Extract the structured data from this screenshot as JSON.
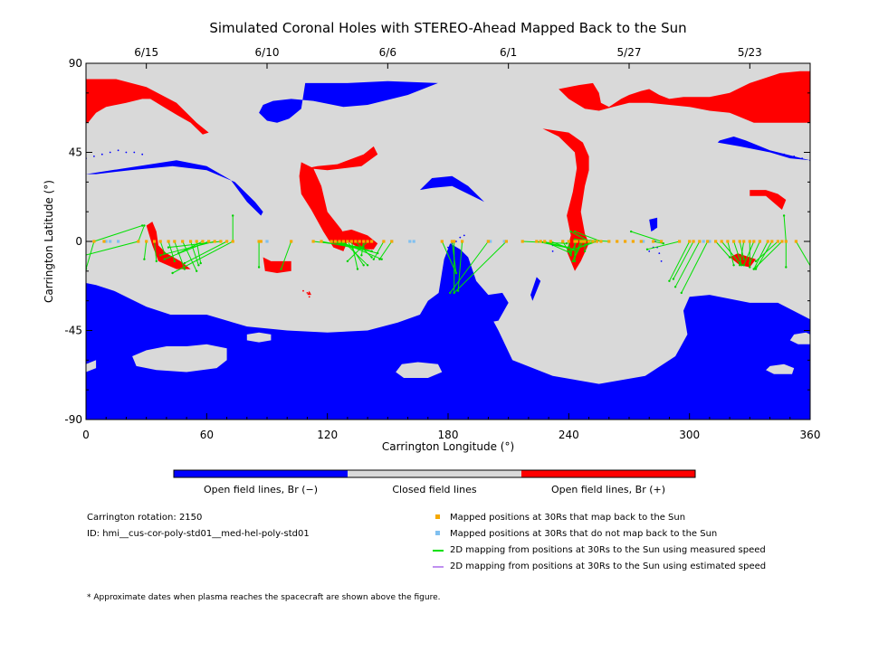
{
  "chart_data": {
    "type": "map",
    "title": "Simulated Coronal Holes with STEREO-Ahead Mapped Back to the Sun",
    "xlabel": "Carrington Longitude (°)",
    "ylabel": "Carrington Latitude (°)",
    "xlim": [
      0,
      360
    ],
    "ylim": [
      -90,
      90
    ],
    "x_ticks": [
      "0",
      "60",
      "120",
      "180",
      "240",
      "300",
      "360"
    ],
    "y_ticks": [
      "90",
      "45",
      "0",
      "-45",
      "-90"
    ],
    "date_ticks": [
      {
        "label": "6/15",
        "lon": 30
      },
      {
        "label": "6/10",
        "lon": 90
      },
      {
        "label": "6/6",
        "lon": 150
      },
      {
        "label": "6/1",
        "lon": 210
      },
      {
        "label": "5/27",
        "lon": 270
      },
      {
        "label": "5/23",
        "lon": 330
      }
    ],
    "colorbar": [
      {
        "label": "Open field lines, Br (−)",
        "color": "#0000ff"
      },
      {
        "label": "Closed field lines",
        "color": "#d9d9d9"
      },
      {
        "label": "Open field lines, Br (+)",
        "color": "#ff0000"
      }
    ],
    "mapped_lon": [
      4,
      9,
      26,
      30,
      34,
      37,
      41,
      44,
      48,
      52,
      55,
      58,
      61,
      64,
      67,
      70,
      73,
      86,
      87,
      102,
      113,
      117,
      122,
      124,
      126,
      128,
      130,
      132,
      134,
      136,
      138,
      140,
      142,
      148,
      152,
      177,
      182,
      183,
      187,
      200,
      209,
      217,
      224,
      226,
      228,
      231,
      237,
      240,
      243,
      244,
      246,
      247,
      248,
      250,
      252,
      254,
      256,
      260,
      264,
      268,
      272,
      276,
      282,
      286,
      295,
      300,
      302,
      305,
      309,
      313,
      316,
      319,
      322,
      325,
      327,
      330,
      332,
      335,
      339,
      341,
      344,
      346,
      348,
      353
    ],
    "unmapped_lon": [
      10,
      12,
      16,
      90,
      152,
      161,
      163,
      200,
      201,
      208,
      277,
      307,
      309,
      310
    ],
    "mapping_lines": [
      [
        4,
        0,
        0,
        -14
      ],
      [
        4,
        0,
        28,
        8
      ],
      [
        26,
        0,
        -12,
        -10
      ],
      [
        30,
        0,
        29,
        -9
      ],
      [
        34,
        0,
        35,
        -10
      ],
      [
        37,
        0,
        39,
        -6
      ],
      [
        41,
        0,
        44,
        -10
      ],
      [
        44,
        0,
        49,
        -14
      ],
      [
        48,
        0,
        55,
        -15
      ],
      [
        52,
        0,
        56,
        -12
      ],
      [
        55,
        0,
        57,
        -11
      ],
      [
        58,
        0,
        46,
        -6
      ],
      [
        61,
        0,
        39,
        -9
      ],
      [
        64,
        0,
        37,
        -7
      ],
      [
        67,
        0,
        41,
        -3
      ],
      [
        70,
        0,
        49,
        -11
      ],
      [
        73,
        0,
        73,
        13
      ],
      [
        73,
        0,
        43,
        -16
      ],
      [
        26,
        0,
        29,
        8
      ],
      [
        86,
        0,
        86,
        -13
      ],
      [
        102,
        0,
        97,
        -14
      ],
      [
        113,
        0,
        138,
        -3
      ],
      [
        117,
        0,
        142,
        -5
      ],
      [
        122,
        0,
        145,
        -6
      ],
      [
        124,
        0,
        142,
        -5
      ],
      [
        126,
        0,
        147,
        -9
      ],
      [
        128,
        0,
        140,
        -12
      ],
      [
        130,
        0,
        138,
        -12
      ],
      [
        132,
        0,
        135,
        -14
      ],
      [
        134,
        0,
        142,
        -8
      ],
      [
        138,
        0,
        137,
        -7
      ],
      [
        140,
        0,
        130,
        -10
      ],
      [
        148,
        0,
        143,
        -9
      ],
      [
        152,
        0,
        146,
        -9
      ],
      [
        177,
        0,
        184,
        -16
      ],
      [
        182,
        0,
        184,
        -16
      ],
      [
        183,
        0,
        183,
        -26
      ],
      [
        187,
        0,
        185,
        -25
      ],
      [
        200,
        0,
        181,
        -26
      ],
      [
        209,
        0,
        183,
        -26
      ],
      [
        217,
        0,
        239,
        -1
      ],
      [
        224,
        0,
        243,
        -4
      ],
      [
        226,
        0,
        240,
        -3
      ],
      [
        228,
        0,
        241,
        -6
      ],
      [
        231,
        0,
        244,
        -5
      ],
      [
        237,
        0,
        241,
        -7
      ],
      [
        240,
        0,
        241,
        -7
      ],
      [
        243,
        0,
        243,
        -10
      ],
      [
        244,
        0,
        241,
        -6
      ],
      [
        246,
        0,
        242,
        -10
      ],
      [
        247,
        0,
        243,
        -8
      ],
      [
        248,
        0,
        248,
        -5
      ],
      [
        250,
        0,
        241,
        5
      ],
      [
        252,
        0,
        243,
        -4
      ],
      [
        254,
        0,
        240,
        -5
      ],
      [
        256,
        0,
        243,
        5
      ],
      [
        260,
        0,
        243,
        1
      ],
      [
        282,
        0,
        287,
        -1
      ],
      [
        286,
        0,
        271,
        5
      ],
      [
        295,
        0,
        279,
        -4
      ],
      [
        300,
        0,
        290,
        -20
      ],
      [
        302,
        0,
        292,
        -19
      ],
      [
        305,
        0,
        293,
        -23
      ],
      [
        309,
        0,
        296,
        -26
      ],
      [
        313,
        0,
        320,
        -8
      ],
      [
        316,
        0,
        325,
        -11
      ],
      [
        319,
        0,
        322,
        -12
      ],
      [
        322,
        0,
        326,
        -12
      ],
      [
        325,
        0,
        327,
        -9
      ],
      [
        327,
        0,
        325,
        -12
      ],
      [
        330,
        0,
        330,
        -13
      ],
      [
        332,
        0,
        327,
        -12
      ],
      [
        335,
        0,
        330,
        -11
      ],
      [
        339,
        0,
        332,
        -14
      ],
      [
        341,
        0,
        333,
        -14
      ],
      [
        344,
        0,
        333,
        -10
      ],
      [
        346,
        0,
        332,
        -14
      ],
      [
        348,
        0,
        348,
        -13
      ],
      [
        353,
        0,
        361,
        -14
      ],
      [
        348,
        0,
        347,
        13
      ]
    ],
    "legend": [
      {
        "label": "Mapped positions at 30Rs that map back to the Sun",
        "color": "#f5a800",
        "marker": "square"
      },
      {
        "label": "Mapped positions at 30Rs that do not map back to the Sun",
        "color": "#80c0f0",
        "marker": "square"
      },
      {
        "label": "2D mapping from positions at 30Rs to the Sun using measured speed",
        "color": "#00e000",
        "marker": "line"
      },
      {
        "label": "2D mapping from positions at 30Rs to the Sun using estimated speed",
        "color": "#c090f0",
        "marker": "line"
      }
    ],
    "background_color": "#d9d9d9",
    "negative_color": "#0000ff",
    "positive_color": "#ff0000"
  },
  "info": {
    "rotation": "Carrington rotation: 2150",
    "id": "ID: hmi__cus-cor-poly-std01__med-hel-poly-std01",
    "footnote": "* Approximate dates when plasma reaches the spacecraft are shown above the figure."
  }
}
